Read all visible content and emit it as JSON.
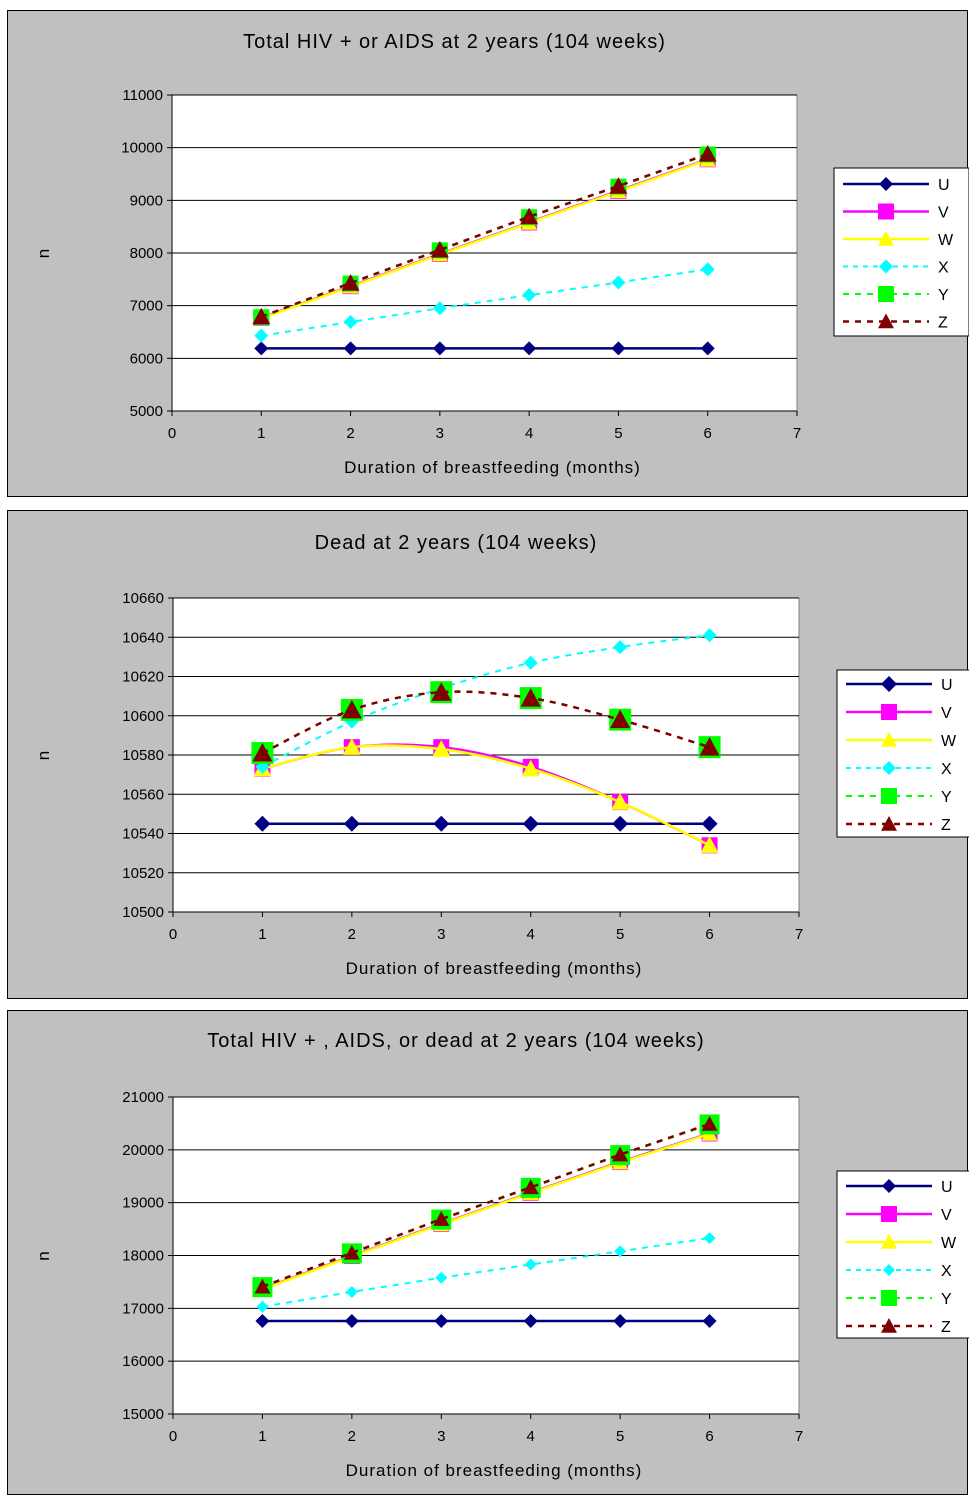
{
  "colors": {
    "U": "#000080",
    "V": "#ff00ff",
    "W": "#ffff00",
    "X": "#00ffff",
    "Y": "#00ff00",
    "Z": "#800000",
    "panel_background": "#c0c0c0",
    "plot_background": "#ffffff"
  },
  "chart_data": [
    {
      "type": "line",
      "title": "Total HIV + or AIDS at 2 years (104 weeks)",
      "xlabel": "Duration of breastfeeding (months)",
      "ylabel": "n",
      "xlim": [
        0,
        7
      ],
      "ylim": [
        5000,
        11000
      ],
      "xticks": [
        0,
        1,
        2,
        3,
        4,
        5,
        6,
        7
      ],
      "yticks": [
        5000,
        6000,
        7000,
        8000,
        9000,
        10000,
        11000
      ],
      "grid": "horizontal",
      "legend_position": "right",
      "x": [
        1,
        2,
        3,
        4,
        5,
        6
      ],
      "series": [
        {
          "name": "U",
          "values": [
            6190,
            6190,
            6190,
            6190,
            6190,
            6190
          ],
          "line": "solid",
          "marker": "diamond",
          "smooth": false
        },
        {
          "name": "V",
          "values": [
            6770,
            7370,
            7980,
            8580,
            9180,
            9780
          ],
          "line": "solid",
          "marker": "square",
          "smooth": false
        },
        {
          "name": "W",
          "values": [
            6760,
            7360,
            7970,
            8570,
            9170,
            9770
          ],
          "line": "solid",
          "marker": "triangle",
          "smooth": false
        },
        {
          "name": "X",
          "values": [
            6430,
            6690,
            6950,
            7200,
            7440,
            7690
          ],
          "line": "dashed",
          "marker": "diamond",
          "smooth": false
        },
        {
          "name": "Y",
          "values": [
            6780,
            7420,
            8050,
            8680,
            9260,
            9870
          ],
          "line": "dashed",
          "marker": "square",
          "smooth": false
        },
        {
          "name": "Z",
          "values": [
            6790,
            7430,
            8060,
            8690,
            9270,
            9880
          ],
          "line": "dashed",
          "marker": "triangle",
          "smooth": false
        }
      ]
    },
    {
      "type": "line",
      "title": "Dead at 2 years (104 weeks)",
      "xlabel": "Duration of breastfeeding (months)",
      "ylabel": "n",
      "xlim": [
        0,
        7
      ],
      "ylim": [
        10500,
        10660
      ],
      "xticks": [
        0,
        1,
        2,
        3,
        4,
        5,
        6,
        7
      ],
      "yticks": [
        10500,
        10520,
        10540,
        10560,
        10580,
        10600,
        10620,
        10640,
        10660
      ],
      "grid": "horizontal",
      "legend_position": "right",
      "x": [
        1,
        2,
        3,
        4,
        5,
        6
      ],
      "series": [
        {
          "name": "U",
          "values": [
            10545,
            10545,
            10545,
            10545,
            10545,
            10545
          ],
          "line": "solid",
          "marker": "diamond",
          "smooth": false
        },
        {
          "name": "V",
          "values": [
            10573,
            10584,
            10584,
            10574,
            10556,
            10534
          ],
          "line": "solid",
          "marker": "square",
          "smooth": true
        },
        {
          "name": "W",
          "values": [
            10573,
            10584,
            10583,
            10573,
            10556,
            10534
          ],
          "line": "solid",
          "marker": "triangle",
          "smooth": true
        },
        {
          "name": "X",
          "values": [
            10574,
            10597,
            10614,
            10627,
            10635,
            10641
          ],
          "line": "dashed",
          "marker": "diamond",
          "smooth": true
        },
        {
          "name": "Y",
          "values": [
            10581,
            10603,
            10612,
            10609,
            10598,
            10584
          ],
          "line": "dashed",
          "marker": "square",
          "smooth": true
        },
        {
          "name": "Z",
          "values": [
            10581,
            10603,
            10612,
            10609,
            10598,
            10584
          ],
          "line": "dashed",
          "marker": "triangle",
          "smooth": true
        }
      ]
    },
    {
      "type": "line",
      "title": "Total HIV + , AIDS, or dead at 2 years (104 weeks)",
      "xlabel": "Duration of breastfeeding (months)",
      "ylabel": "n",
      "xlim": [
        0,
        7
      ],
      "ylim": [
        15000,
        21000
      ],
      "xticks": [
        0,
        1,
        2,
        3,
        4,
        5,
        6,
        7
      ],
      "yticks": [
        15000,
        16000,
        17000,
        18000,
        19000,
        20000,
        21000
      ],
      "grid": "horizontal",
      "legend_position": "right",
      "x": [
        1,
        2,
        3,
        4,
        5,
        6
      ],
      "series": [
        {
          "name": "U",
          "values": [
            16760,
            16760,
            16760,
            16760,
            16760,
            16760
          ],
          "line": "solid",
          "marker": "diamond",
          "smooth": false
        },
        {
          "name": "V",
          "values": [
            17370,
            17990,
            18600,
            19190,
            19770,
            20310
          ],
          "line": "solid",
          "marker": "square",
          "smooth": false
        },
        {
          "name": "W",
          "values": [
            17360,
            17980,
            18590,
            19180,
            19760,
            20300
          ],
          "line": "solid",
          "marker": "triangle",
          "smooth": false
        },
        {
          "name": "X",
          "values": [
            17030,
            17310,
            17580,
            17830,
            18080,
            18330
          ],
          "line": "dashed",
          "marker": "diamond",
          "smooth": false
        },
        {
          "name": "Y",
          "values": [
            17400,
            18040,
            18680,
            19280,
            19900,
            20480
          ],
          "line": "dashed",
          "marker": "square",
          "smooth": false
        },
        {
          "name": "Z",
          "values": [
            17410,
            18050,
            18690,
            19290,
            19910,
            20490
          ],
          "line": "dashed",
          "marker": "triangle",
          "smooth": false
        }
      ]
    }
  ]
}
